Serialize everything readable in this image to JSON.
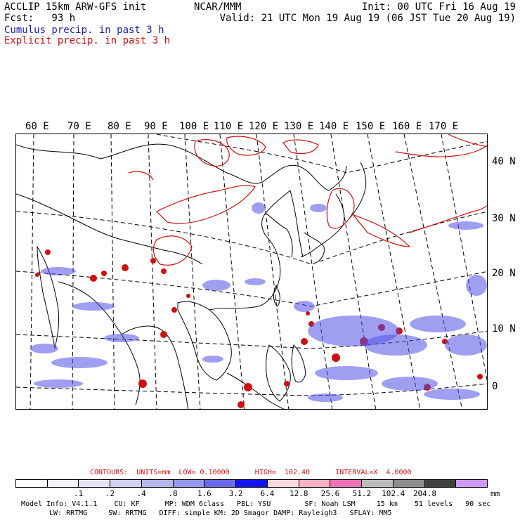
{
  "header": {
    "left_line1": "ACCLIP 15km ARW-GFS init",
    "left_line2": "Fcst:   93 h",
    "center": "NCAR/MMM",
    "init": "Init: 00 UTC Fri 16 Aug 19",
    "valid": "Valid: 21 UTC Mon 19 Aug 19 (06 JST Tue 20 Aug 19)",
    "cumulus_label": "Cumulus precip. in past 3 h",
    "explicit_label": "Explicit precip. in past 3 h"
  },
  "colors": {
    "cumulus": "#1a1aa8",
    "explicit": "#d01010",
    "coast": "#000000",
    "grid": "#000000"
  },
  "map": {
    "lon_labels": [
      "60 E",
      "70 E",
      "80 E",
      "90 E",
      "100 E",
      "110 E",
      "120 E",
      "130 E",
      "140 E",
      "150 E",
      "160 E",
      "170 E"
    ],
    "lat_labels": [
      "40 N",
      "30 N",
      "20 N",
      "10 N",
      "0"
    ]
  },
  "contours": {
    "text": "CONTOURS:  UNITS=mm  LOW= 0.10000      HIGH=  102.40      INTERVAL=X  4.0000"
  },
  "colorbar": {
    "colors": [
      "#ffffff",
      "#f3f3fb",
      "#e4e4f6",
      "#d0d0f2",
      "#b6b6ee",
      "#9696ee",
      "#6a6aee",
      "#1414f0",
      "#fbd8dc",
      "#f8b2c0",
      "#f070b4",
      "#bcbcbc",
      "#8c8c8c",
      "#404040",
      "#cc99ff"
    ],
    "labels": [
      ".1",
      ".2",
      ".4",
      ".8",
      "1.6",
      "3.2",
      "6.4",
      "12.8",
      "25.6",
      "51.2",
      "102.4",
      "204.8"
    ],
    "units": "mm"
  },
  "model_info": {
    "line1": "Model Info: V4.1.1    CU: KF      MP: WDM 6class   PBL: YSU        SF: Noah LSM     15 km    51 levels   90 sec",
    "line2": "LW: RRTMG     SW: RRTMG   DIFF: simple KM: 2D Smagor DAMP: Rayleigh3   SFLAY: MM5"
  }
}
